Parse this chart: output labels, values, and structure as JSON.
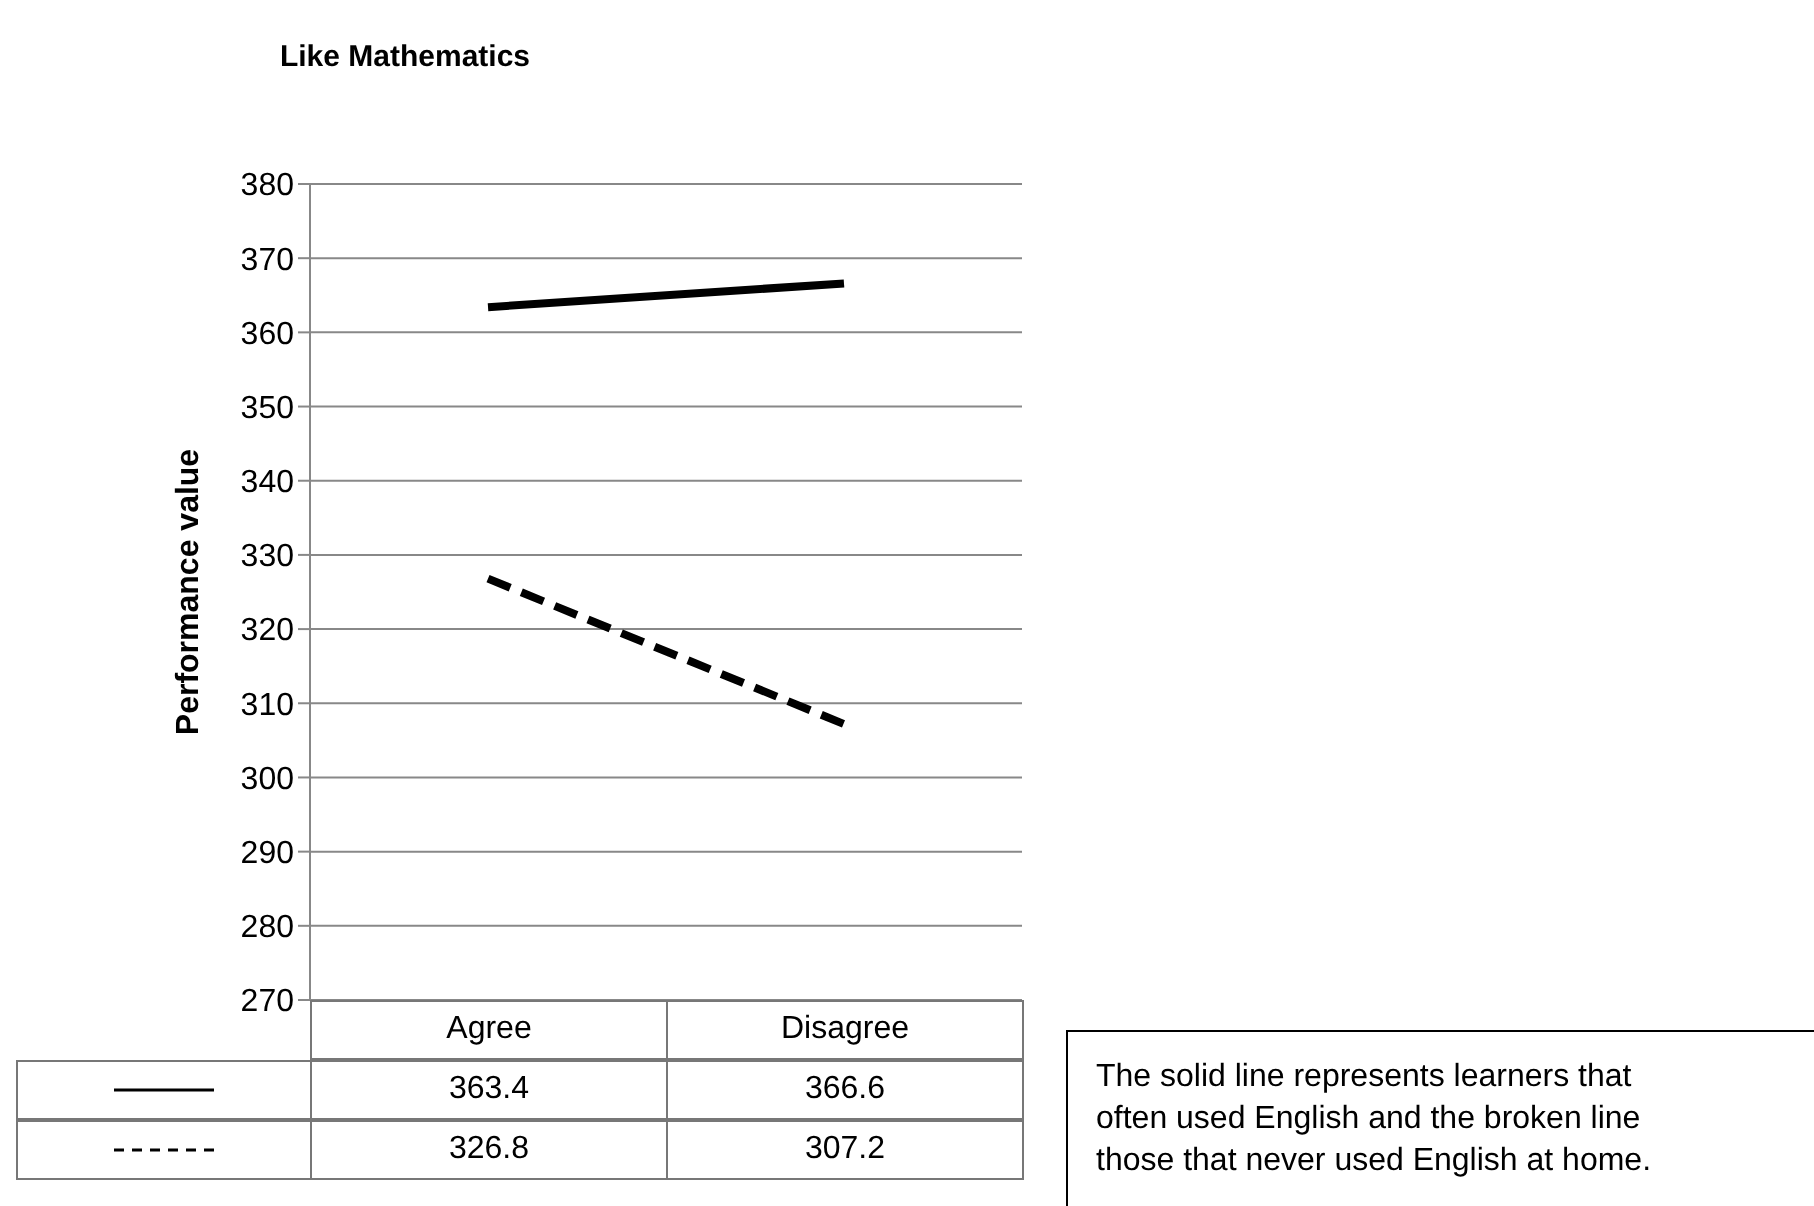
{
  "chart_data": {
    "type": "line",
    "title": "Like Mathematics",
    "ylabel": "Performance value",
    "categories": [
      "Agree",
      "Disagree"
    ],
    "series": [
      {
        "color": "#000000",
        "line_style": "solid",
        "values": [
          363.4,
          366.6
        ]
      },
      {
        "color": "#000000",
        "line_style": "dashed",
        "values": [
          326.8,
          307.2
        ]
      }
    ],
    "ylim": [
      270,
      380
    ],
    "yticks": [
      270,
      280,
      290,
      300,
      310,
      320,
      330,
      340,
      350,
      360,
      370,
      380
    ],
    "grid": "y",
    "marker": "none",
    "data_labels": true,
    "annotations": [
      "The solid line represents learners that often used English and the broken line those that never used English at home."
    ]
  }
}
